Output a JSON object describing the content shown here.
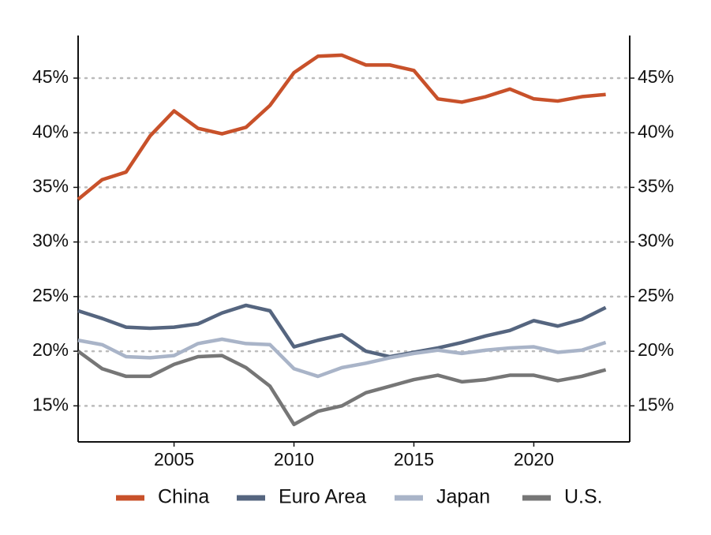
{
  "chart_data": {
    "type": "line",
    "x": [
      2001,
      2002,
      2003,
      2004,
      2005,
      2006,
      2007,
      2008,
      2009,
      2010,
      2011,
      2012,
      2013,
      2014,
      2015,
      2016,
      2017,
      2018,
      2019,
      2020,
      2021,
      2022,
      2023
    ],
    "series": [
      {
        "name": "China",
        "color": "#c8512a",
        "values": [
          33.9,
          35.7,
          36.4,
          39.7,
          42.0,
          40.4,
          39.9,
          40.5,
          42.5,
          45.5,
          47.0,
          47.1,
          46.2,
          46.2,
          45.7,
          43.1,
          42.8,
          43.3,
          44.0,
          43.1,
          42.9,
          43.3,
          43.5
        ]
      },
      {
        "name": "Euro Area",
        "color": "#55657f",
        "values": [
          23.7,
          23.0,
          22.2,
          22.1,
          22.2,
          22.5,
          23.5,
          24.2,
          23.7,
          20.4,
          21.0,
          21.5,
          20.0,
          19.5,
          19.9,
          20.3,
          20.8,
          21.4,
          21.9,
          22.8,
          22.3,
          22.9,
          24.0
        ]
      },
      {
        "name": "Japan",
        "color": "#a9b4c8",
        "values": [
          21.0,
          20.6,
          19.5,
          19.4,
          19.6,
          20.7,
          21.1,
          20.7,
          20.6,
          18.4,
          17.7,
          18.5,
          18.9,
          19.4,
          19.8,
          20.1,
          19.8,
          20.1,
          20.3,
          20.4,
          19.9,
          20.1,
          20.8
        ]
      },
      {
        "name": "U.S.",
        "color": "#767676",
        "values": [
          20.0,
          18.4,
          17.7,
          17.7,
          18.8,
          19.5,
          19.6,
          18.5,
          16.8,
          13.3,
          14.5,
          15.0,
          16.2,
          16.8,
          17.4,
          17.8,
          17.2,
          17.4,
          17.8,
          17.8,
          17.3,
          17.7,
          18.3
        ]
      }
    ],
    "xlim": [
      2001,
      2024
    ],
    "xticks": [
      2005,
      2010,
      2015,
      2020
    ],
    "ylim": [
      11.7,
      48.9
    ],
    "yticks": [
      {
        "value": 15,
        "label": "15%"
      },
      {
        "value": 20,
        "label": "20%"
      },
      {
        "value": 25,
        "label": "25%"
      },
      {
        "value": 30,
        "label": "30%"
      },
      {
        "value": 35,
        "label": "35%"
      },
      {
        "value": 40,
        "label": "40%"
      },
      {
        "value": 45,
        "label": "45%"
      }
    ],
    "y2lim": [
      11.7,
      48.9
    ],
    "y2ticks": [
      {
        "value": 15,
        "label": "15%"
      },
      {
        "value": 20,
        "label": "20%"
      },
      {
        "value": 25,
        "label": "25%"
      },
      {
        "value": 30,
        "label": "30%"
      },
      {
        "value": 35,
        "label": "35%"
      },
      {
        "value": 40,
        "label": "40%"
      },
      {
        "value": 45,
        "label": "45%"
      }
    ],
    "grid": true,
    "legend": "bottom"
  }
}
